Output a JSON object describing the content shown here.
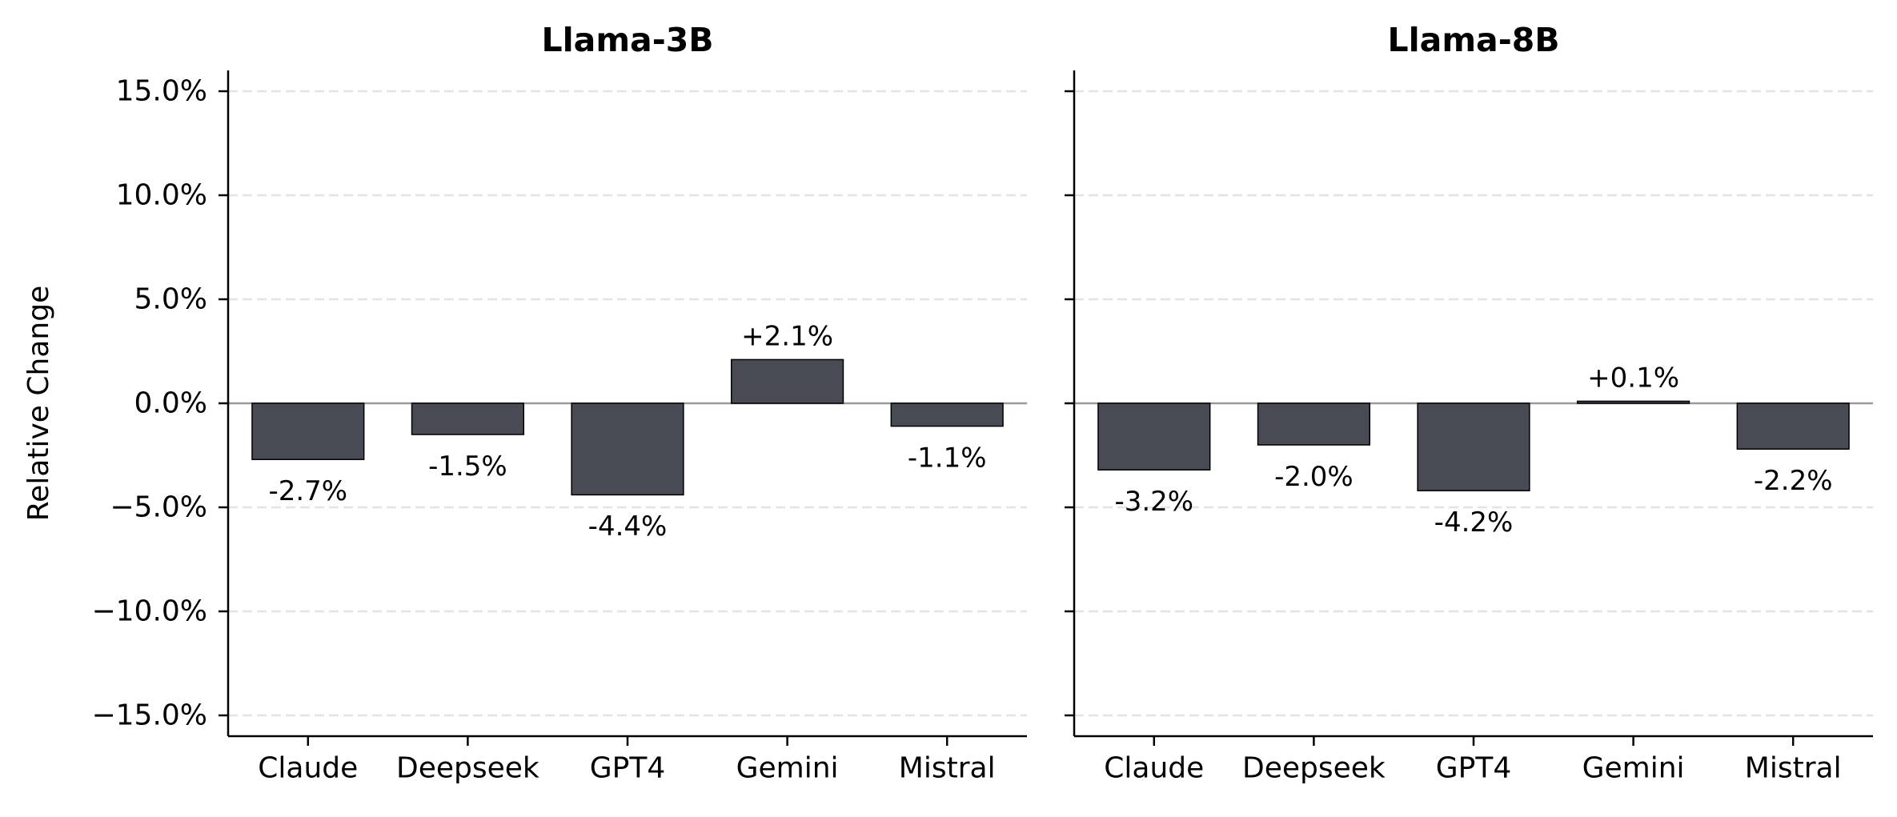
{
  "chart_data": [
    {
      "type": "bar",
      "title": "Llama-3B",
      "ylabel": "Relative Change",
      "xlabel": "",
      "categories": [
        "Claude",
        "Deepseek",
        "GPT4",
        "Gemini",
        "Mistral"
      ],
      "values": [
        -2.7,
        -1.5,
        -4.4,
        2.1,
        -1.1
      ],
      "data_labels": [
        "-2.7%",
        "-1.5%",
        "-4.4%",
        "+2.1%",
        "-1.1%"
      ],
      "yticks": [
        15,
        10,
        5,
        0,
        -5,
        -10,
        -15
      ],
      "ytick_labels": [
        "15.0%",
        "10.0%",
        "5.0%",
        "0.0%",
        "−5.0%",
        "−10.0%",
        "−15.0%"
      ],
      "ylim": [
        -16,
        16
      ],
      "grid": true,
      "bar_color": "#484b54",
      "zero_line_color": "#999999"
    },
    {
      "type": "bar",
      "title": "Llama-8B",
      "ylabel": "",
      "xlabel": "",
      "categories": [
        "Claude",
        "Deepseek",
        "GPT4",
        "Gemini",
        "Mistral"
      ],
      "values": [
        -3.2,
        -2.0,
        -4.2,
        0.1,
        -2.2
      ],
      "data_labels": [
        "-3.2%",
        "-2.0%",
        "-4.2%",
        "+0.1%",
        "-2.2%"
      ],
      "yticks": [
        15,
        10,
        5,
        0,
        -5,
        -10,
        -15
      ],
      "ytick_labels": [],
      "ylim": [
        -16,
        16
      ],
      "grid": true,
      "bar_color": "#484b54",
      "zero_line_color": "#999999"
    }
  ]
}
